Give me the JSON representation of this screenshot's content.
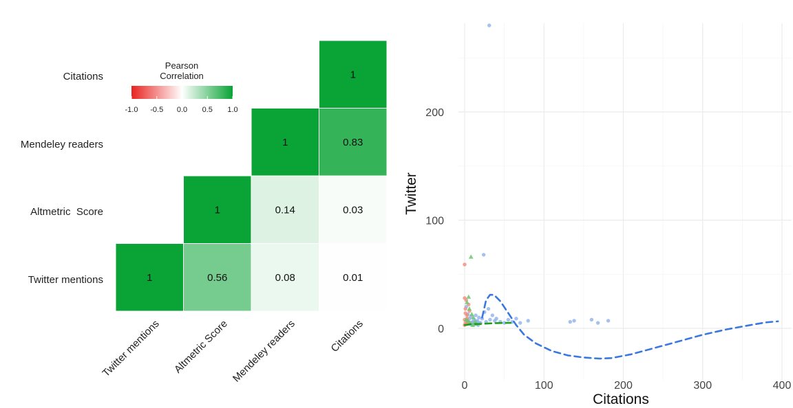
{
  "chart_data": [
    {
      "type": "heatmap",
      "variables": [
        "Twitter mentions",
        "Altmetric Score",
        "Mendeley readers",
        "Citations"
      ],
      "y_labels": [
        "Citations",
        "Mendeley readers",
        "Altmetric  Score",
        "Twitter mentions"
      ],
      "x_labels": [
        "Twitter mentions",
        "Altmetric Score",
        "Mendeley readers",
        "Citations"
      ],
      "cells": [
        {
          "row": "Twitter mentions",
          "col": "Twitter mentions",
          "value": 1,
          "label": "1"
        },
        {
          "row": "Twitter mentions",
          "col": "Altmetric Score",
          "value": 0.56,
          "label": "0.56"
        },
        {
          "row": "Twitter mentions",
          "col": "Mendeley readers",
          "value": 0.08,
          "label": "0.08"
        },
        {
          "row": "Twitter mentions",
          "col": "Citations",
          "value": 0.01,
          "label": "0.01"
        },
        {
          "row": "Altmetric Score",
          "col": "Altmetric Score",
          "value": 1,
          "label": "1"
        },
        {
          "row": "Altmetric Score",
          "col": "Mendeley readers",
          "value": 0.14,
          "label": "0.14"
        },
        {
          "row": "Altmetric Score",
          "col": "Citations",
          "value": 0.03,
          "label": "0.03"
        },
        {
          "row": "Mendeley readers",
          "col": "Mendeley readers",
          "value": 1,
          "label": "1"
        },
        {
          "row": "Mendeley readers",
          "col": "Citations",
          "value": 0.83,
          "label": "0.83"
        },
        {
          "row": "Citations",
          "col": "Citations",
          "value": 1,
          "label": "1"
        }
      ],
      "legend": {
        "title_line1": "Pearson",
        "title_line2": "Correlation",
        "ticks": [
          "-1.0",
          "-0.5",
          "0.0",
          "0.5",
          "1.0"
        ],
        "range": [
          -1,
          1
        ],
        "colors": {
          "low": "#e8231f",
          "mid": "#ffffff",
          "high": "#0aa336"
        }
      }
    },
    {
      "type": "scatter",
      "xlabel": "Citations",
      "ylabel": "Twitter",
      "xlim": [
        -8,
        412
      ],
      "ylim": [
        -48,
        282
      ],
      "x_ticks": [
        0,
        100,
        200,
        300,
        400
      ],
      "y_ticks": [
        0,
        100,
        200
      ],
      "grid": true,
      "series": [
        {
          "color": "#8db2ec",
          "marker": "circle",
          "points": [
            [
              31,
              280
            ],
            [
              24,
              68
            ],
            [
              2,
              20
            ],
            [
              4,
              13
            ],
            [
              6,
              9
            ],
            [
              8,
              11
            ],
            [
              10,
              6
            ],
            [
              12,
              8
            ],
            [
              14,
              12
            ],
            [
              16,
              7
            ],
            [
              18,
              10
            ],
            [
              20,
              5
            ],
            [
              22,
              9
            ],
            [
              25,
              15
            ],
            [
              27,
              6
            ],
            [
              30,
              18
            ],
            [
              32,
              8
            ],
            [
              35,
              12
            ],
            [
              38,
              7
            ],
            [
              40,
              9
            ],
            [
              45,
              6
            ],
            [
              50,
              5
            ],
            [
              55,
              8
            ],
            [
              60,
              6
            ],
            [
              65,
              9
            ],
            [
              70,
              5
            ],
            [
              80,
              7
            ],
            [
              133,
              6
            ],
            [
              138,
              7
            ],
            [
              160,
              8
            ],
            [
              168,
              5
            ],
            [
              181,
              7
            ],
            [
              3,
              4
            ],
            [
              5,
              6
            ],
            [
              7,
              4
            ],
            [
              9,
              5
            ],
            [
              11,
              3
            ],
            [
              13,
              4
            ],
            [
              15,
              6
            ],
            [
              17,
              3
            ],
            [
              19,
              5
            ]
          ]
        },
        {
          "color": "#f08c7c",
          "marker": "circle",
          "points": [
            [
              0,
              59
            ],
            [
              0,
              28
            ],
            [
              2,
              26
            ],
            [
              1,
              18
            ],
            [
              3,
              12
            ],
            [
              0,
              8
            ],
            [
              1,
              5
            ],
            [
              2,
              4
            ],
            [
              4,
              6
            ],
            [
              0,
              3
            ],
            [
              1,
              14
            ],
            [
              3,
              9
            ],
            [
              5,
              22
            ],
            [
              6,
              16
            ]
          ]
        },
        {
          "color": "#6ec46e",
          "marker": "triangle",
          "points": [
            [
              8,
              66
            ],
            [
              5,
              29
            ],
            [
              3,
              24
            ],
            [
              6,
              18
            ],
            [
              9,
              13
            ],
            [
              11,
              10
            ],
            [
              4,
              7
            ],
            [
              7,
              5
            ],
            [
              13,
              6
            ],
            [
              15,
              4
            ],
            [
              10,
              3
            ],
            [
              2,
              8
            ]
          ]
        }
      ],
      "curves": [
        {
          "color": "#3a78e0",
          "style": "dashed",
          "points": [
            [
              22,
              10
            ],
            [
              27,
              26
            ],
            [
              32,
              31
            ],
            [
              37,
              31
            ],
            [
              45,
              25
            ],
            [
              55,
              14
            ],
            [
              65,
              3
            ],
            [
              75,
              -6
            ],
            [
              90,
              -14
            ],
            [
              110,
              -21
            ],
            [
              130,
              -25
            ],
            [
              150,
              -27
            ],
            [
              170,
              -28
            ],
            [
              185,
              -27.5
            ],
            [
              210,
              -24
            ],
            [
              240,
              -18
            ],
            [
              270,
              -12
            ],
            [
              300,
              -6
            ],
            [
              330,
              -1
            ],
            [
              360,
              3
            ],
            [
              380,
              5.5
            ],
            [
              395,
              6.5
            ]
          ]
        },
        {
          "color": "#1ca01c",
          "style": "dashed",
          "points": [
            [
              0,
              3
            ],
            [
              10,
              4
            ],
            [
              20,
              4
            ],
            [
              30,
              4.5
            ],
            [
              40,
              4.8
            ],
            [
              50,
              5
            ],
            [
              58,
              5
            ]
          ]
        }
      ]
    }
  ]
}
